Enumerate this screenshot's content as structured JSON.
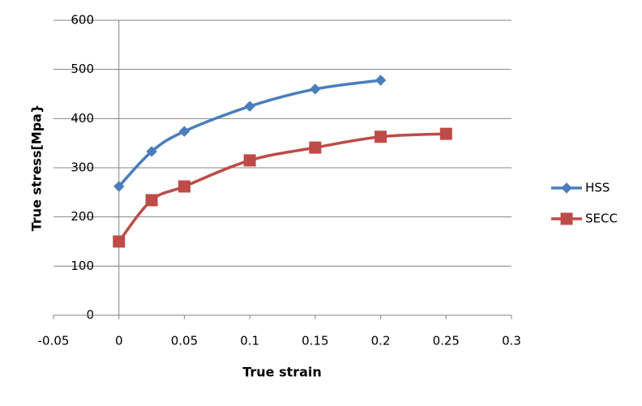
{
  "chart_data": {
    "type": "scatter-smooth",
    "x_label": "True strain",
    "y_label": "True stress[Mpa}",
    "xlim": [
      -0.05,
      0.3
    ],
    "xticks": [
      -0.05,
      0,
      0.05,
      0.1,
      0.15,
      0.2,
      0.25,
      0.3
    ],
    "ylim": [
      0,
      600
    ],
    "yticks": [
      0,
      100,
      200,
      300,
      400,
      500,
      600
    ],
    "grid": true,
    "legend": "right",
    "series": [
      {
        "name": "HSS",
        "color": "#4a7ebb",
        "marker": "diamond",
        "x": [
          0,
          0.025,
          0.05,
          0.1,
          0.15,
          0.2
        ],
        "values": [
          262,
          333,
          374,
          425,
          460,
          478
        ]
      },
      {
        "name": "SECC",
        "color": "#be4b48",
        "marker": "square",
        "x": [
          0,
          0.025,
          0.05,
          0.1,
          0.15,
          0.2,
          0.25
        ],
        "values": [
          150,
          234,
          262,
          315,
          341,
          363,
          369
        ]
      }
    ]
  }
}
